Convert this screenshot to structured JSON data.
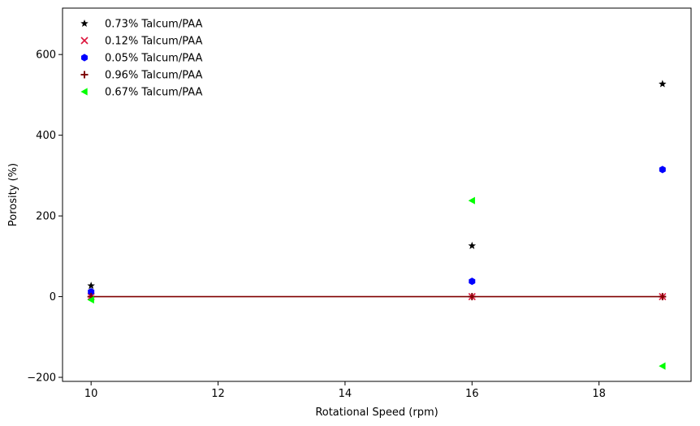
{
  "chart_data": {
    "type": "scatter",
    "title": "",
    "xlabel": "Rotational Speed (rpm)",
    "ylabel": "Porosity (%)",
    "xlim": [
      9.55,
      19.45
    ],
    "ylim": [
      -210,
      715
    ],
    "xticks": [
      10,
      12,
      14,
      16,
      18
    ],
    "yticks": [
      -200,
      0,
      200,
      400,
      600
    ],
    "xtick_labels": [
      "10",
      "12",
      "14",
      "16",
      "18"
    ],
    "ytick_labels": [
      "−200",
      "0",
      "200",
      "400",
      "600"
    ],
    "grid": false,
    "legend_position": "top-left",
    "series": [
      {
        "name": "0.73% Talcum/PAA",
        "marker": "star",
        "color": "#000000",
        "x": [
          10,
          16,
          19
        ],
        "y": [
          27,
          126,
          527
        ]
      },
      {
        "name": "0.12% Talcum/PAA",
        "marker": "x",
        "color": "#dc143c",
        "x": [
          10,
          16,
          19
        ],
        "y": [
          0,
          0,
          0
        ]
      },
      {
        "name": "0.05% Talcum/PAA",
        "marker": "hexagon",
        "color": "#0000ff",
        "x": [
          10,
          16,
          19
        ],
        "y": [
          12,
          38,
          315
        ]
      },
      {
        "name": "0.96% Talcum/PAA",
        "marker": "plus",
        "color": "#800000",
        "x": [
          10,
          16,
          19
        ],
        "y": [
          0,
          0,
          0
        ]
      },
      {
        "name": "0.67% Talcum/PAA",
        "marker": "triangle-left",
        "color": "#00ff00",
        "x": [
          10,
          16,
          19
        ],
        "y": [
          -8,
          238,
          -172
        ]
      }
    ],
    "reference_line": {
      "y": 0,
      "color": "#800000",
      "x_range": [
        10,
        19
      ]
    }
  }
}
